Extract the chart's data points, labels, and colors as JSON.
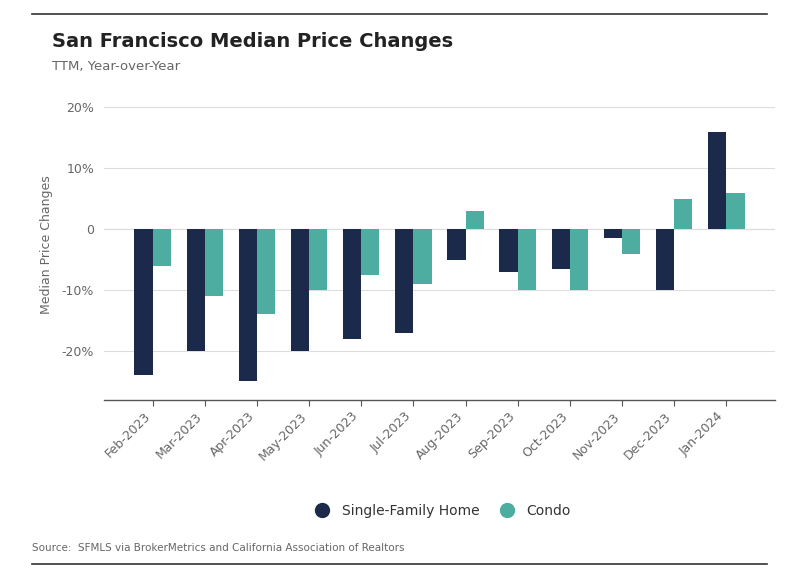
{
  "categories": [
    "Feb-2023",
    "Mar-2023",
    "Apr-2023",
    "May-2023",
    "Jun-2023",
    "Jul-2023",
    "Aug-2023",
    "Sep-2023",
    "Oct-2023",
    "Nov-2023",
    "Dec-2023",
    "Jan-2024"
  ],
  "sfh_values": [
    -24,
    -20,
    -25,
    -20,
    -18,
    -17,
    -5,
    -7,
    -6.5,
    -1.5,
    -10,
    16
  ],
  "condo_values": [
    -6,
    -11,
    -14,
    -10,
    -7.5,
    -9,
    3,
    -10,
    -10,
    -4,
    5,
    6
  ],
  "sfh_color": "#1B2A4A",
  "condo_color": "#4DADA0",
  "title": "San Francisco Median Price Changes",
  "subtitle": "TTM, Year-over-Year",
  "ylabel": "Median Price Changes",
  "source": "Source:  SFMLS via BrokerMetrics and California Association of Realtors",
  "ylim": [
    -28,
    23
  ],
  "yticks": [
    -20,
    -10,
    0,
    10,
    20
  ],
  "ytick_labels": [
    "-20%",
    "-10%",
    "0",
    "10%",
    "20%"
  ],
  "legend_sfh": "Single-Family Home",
  "legend_condo": "Condo",
  "background_color": "#FFFFFF",
  "bar_width": 0.35,
  "top_line_color": "#333333",
  "bottom_line_color": "#333333",
  "grid_color": "#DDDDDD",
  "spine_bottom_color": "#555555",
  "tick_label_color": "#666666",
  "title_color": "#222222",
  "subtitle_color": "#666666",
  "source_color": "#666666"
}
